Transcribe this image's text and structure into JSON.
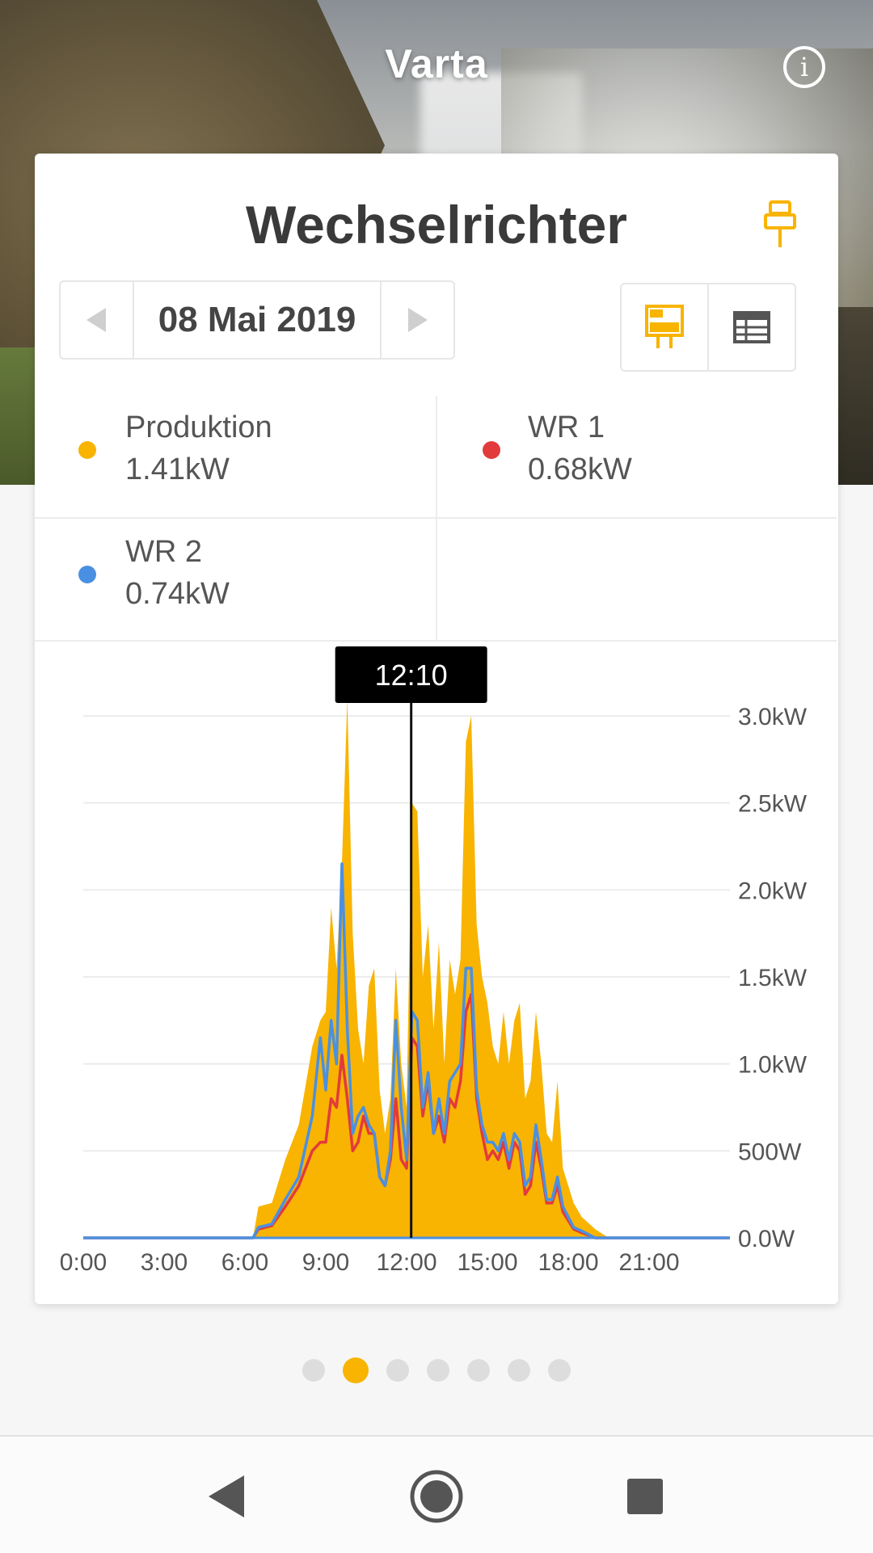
{
  "app": {
    "title": "Varta"
  },
  "card": {
    "title": "Wechselrichter",
    "date": "08 Mai 2019"
  },
  "legend": [
    {
      "name": "Produktion",
      "value": "1.41kW",
      "color": "#f8b400"
    },
    {
      "name": "WR 1",
      "value": "0.68kW",
      "color": "#e23b3b"
    },
    {
      "name": "WR 2",
      "value": "0.74kW",
      "color": "#4a90e2"
    }
  ],
  "icons": {
    "info": "info-icon",
    "pin": "pin-icon",
    "prev": "chevron-left-icon",
    "next": "chevron-right-icon",
    "chart_view": "chart-view-icon",
    "table_view": "table-view-icon"
  },
  "colors": {
    "accent": "#f8b400",
    "wr1": "#e23b3b",
    "wr2": "#4a90e2"
  },
  "chart_data": {
    "type": "area",
    "x_unit": "hours",
    "xlim": [
      0,
      24
    ],
    "ylim": [
      0,
      3.0
    ],
    "x_ticks": [
      "0:00",
      "3:00",
      "6:00",
      "9:00",
      "12:00",
      "15:00",
      "18:00",
      "21:00"
    ],
    "y_ticks": [
      "0.0W",
      "500W",
      "1.0kW",
      "1.5kW",
      "2.0kW",
      "2.5kW",
      "3.0kW"
    ],
    "cursor": {
      "x": 12.17,
      "label": "12:10"
    },
    "x": [
      0,
      6.3,
      6.5,
      7.0,
      7.5,
      8.0,
      8.5,
      8.8,
      9.0,
      9.2,
      9.4,
      9.6,
      9.8,
      10.0,
      10.2,
      10.4,
      10.6,
      10.8,
      11.0,
      11.2,
      11.4,
      11.6,
      11.8,
      12.0,
      12.2,
      12.4,
      12.6,
      12.8,
      13.0,
      13.2,
      13.4,
      13.6,
      13.8,
      14.0,
      14.2,
      14.4,
      14.6,
      14.8,
      15.0,
      15.2,
      15.4,
      15.6,
      15.8,
      16.0,
      16.2,
      16.4,
      16.6,
      16.8,
      17.0,
      17.2,
      17.4,
      17.6,
      17.8,
      18.0,
      18.2,
      18.5,
      19.0,
      19.5,
      20.0,
      20.4,
      24
    ],
    "series": [
      {
        "name": "Produktion",
        "values": [
          0,
          0,
          0.18,
          0.2,
          0.45,
          0.65,
          1.1,
          1.25,
          1.3,
          1.9,
          1.55,
          2.15,
          3.1,
          1.75,
          1.2,
          1.0,
          1.45,
          1.55,
          0.85,
          0.6,
          0.8,
          1.55,
          1.0,
          0.75,
          2.5,
          2.45,
          1.5,
          1.8,
          1.2,
          1.7,
          1.0,
          1.6,
          1.4,
          1.6,
          2.85,
          3.0,
          1.8,
          1.5,
          1.35,
          1.1,
          1.0,
          1.3,
          1.0,
          1.25,
          1.35,
          0.8,
          0.9,
          1.3,
          1.0,
          0.6,
          0.55,
          0.9,
          0.4,
          0.3,
          0.2,
          0.12,
          0.05,
          0,
          0,
          0,
          0
        ]
      },
      {
        "name": "WR 1",
        "values": [
          0,
          0,
          0.05,
          0.07,
          0.18,
          0.3,
          0.5,
          0.55,
          0.55,
          0.8,
          0.75,
          1.05,
          0.8,
          0.5,
          0.55,
          0.7,
          0.6,
          0.6,
          0.35,
          0.3,
          0.45,
          0.8,
          0.45,
          0.4,
          1.15,
          1.1,
          0.7,
          0.9,
          0.6,
          0.7,
          0.55,
          0.8,
          0.75,
          0.9,
          1.3,
          1.4,
          0.8,
          0.6,
          0.45,
          0.5,
          0.45,
          0.55,
          0.4,
          0.55,
          0.5,
          0.25,
          0.3,
          0.55,
          0.4,
          0.2,
          0.2,
          0.3,
          0.15,
          0.1,
          0.05,
          0.03,
          0,
          0,
          0,
          0,
          0
        ]
      },
      {
        "name": "WR 2",
        "values": [
          0,
          0,
          0.06,
          0.08,
          0.22,
          0.35,
          0.7,
          1.15,
          0.85,
          1.25,
          1.0,
          2.15,
          1.2,
          0.6,
          0.7,
          0.75,
          0.65,
          0.6,
          0.35,
          0.3,
          0.5,
          1.25,
          0.75,
          0.45,
          1.3,
          1.25,
          0.75,
          0.95,
          0.6,
          0.8,
          0.6,
          0.9,
          0.95,
          1.0,
          1.55,
          1.55,
          0.85,
          0.65,
          0.55,
          0.55,
          0.5,
          0.6,
          0.45,
          0.6,
          0.55,
          0.3,
          0.35,
          0.65,
          0.45,
          0.22,
          0.22,
          0.35,
          0.18,
          0.12,
          0.06,
          0.04,
          0,
          0,
          0,
          0,
          0
        ]
      }
    ]
  },
  "pager": {
    "count": 7,
    "active": 1
  }
}
